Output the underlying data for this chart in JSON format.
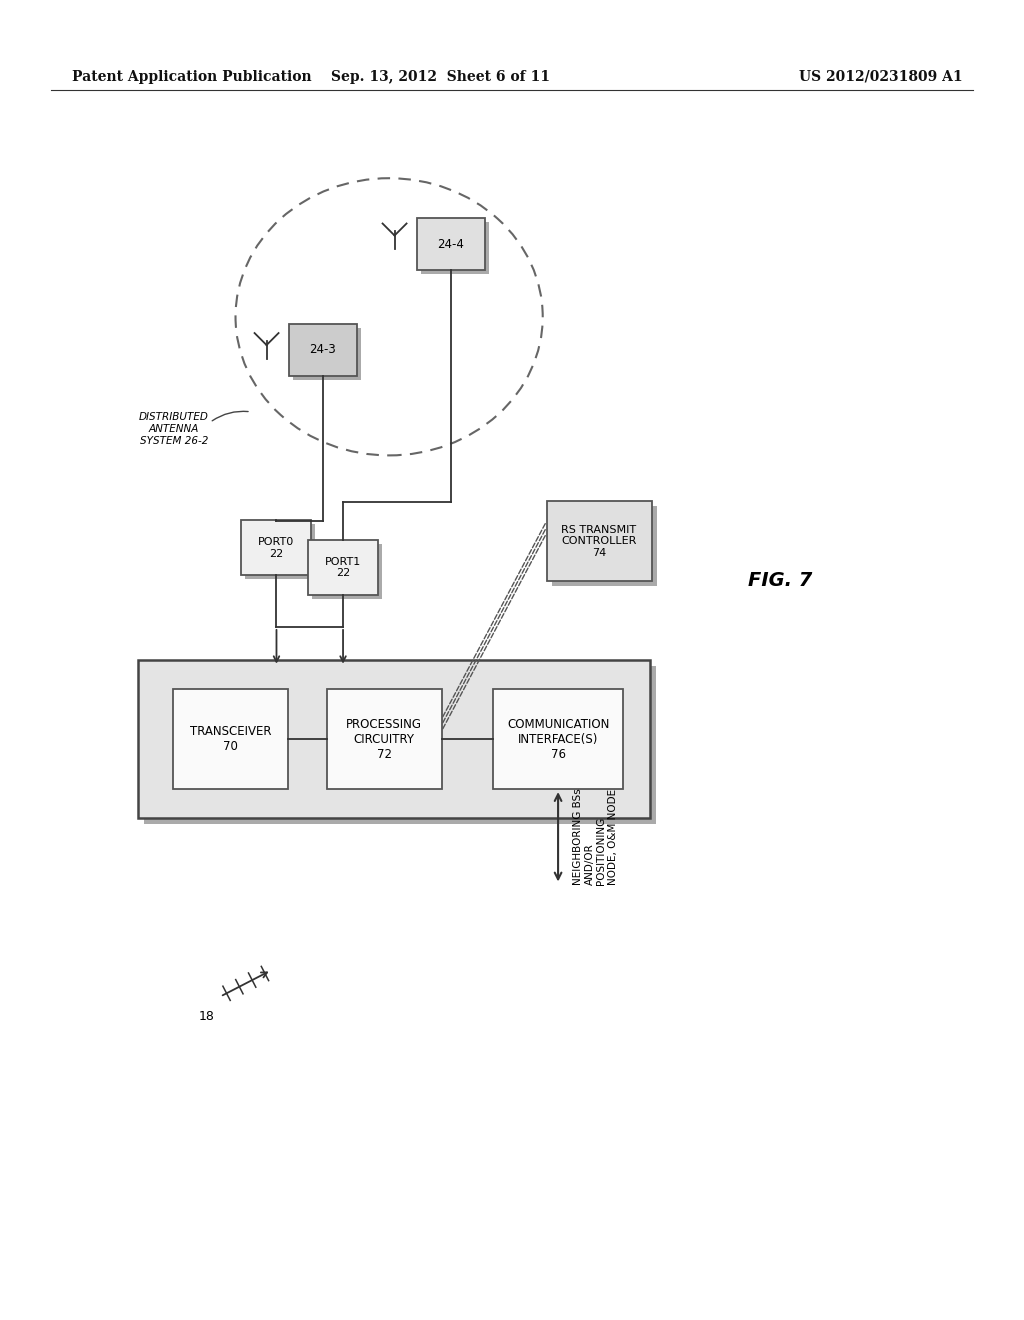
{
  "bg_color": "#ffffff",
  "header_left": "Patent Application Publication",
  "header_mid": "Sep. 13, 2012  Sheet 6 of 11",
  "header_right": "US 2012/0231809 A1",
  "fig_label": "FIG. 7",
  "text_color": "#000000",
  "box_edge": "#555555",
  "box_fill_light": "#f0f0f0",
  "box_fill_mid": "#e0e0e0",
  "box_fill_dark": "#cccccc",
  "group_fill": "#e4e4e4",
  "shadow_color": "#aaaaaa"
}
